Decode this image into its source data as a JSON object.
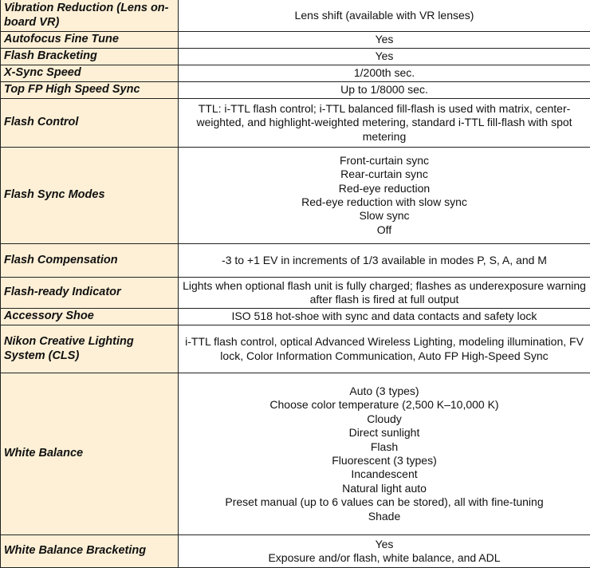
{
  "rows": [
    {
      "label": "Vibration Reduction (Lens on-board VR)",
      "value": "Lens shift (available with VR lenses)"
    },
    {
      "label": "Autofocus Fine Tune",
      "value": "Yes"
    },
    {
      "label": "Flash Bracketing",
      "value": "Yes"
    },
    {
      "label": "X-Sync Speed",
      "value": "1/200th sec."
    },
    {
      "label": "Top FP High Speed Sync",
      "value": "Up to 1/8000 sec."
    },
    {
      "label": "Flash Control",
      "value": "TTL: i-TTL flash control; i-TTL balanced fill-flash is used with matrix, center-weighted, and highlight-weighted metering, standard i-TTL fill-flash with spot metering"
    },
    {
      "label": "Flash Sync Modes",
      "value": "Front-curtain sync\nRear-curtain sync\nRed-eye reduction\nRed-eye reduction with slow sync\nSlow sync\nOff"
    },
    {
      "label": "Flash Compensation",
      "value": "-3 to +1 EV in increments of 1/3 available in modes P, S, A, and M"
    },
    {
      "label": "Flash-ready Indicator",
      "value": "Lights when optional flash unit is fully charged; flashes as underexposure warning after flash is fired at full output"
    },
    {
      "label": "Accessory Shoe",
      "value": "ISO 518 hot-shoe with sync and data contacts and safety lock"
    },
    {
      "label": "Nikon Creative Lighting System (CLS)",
      "value": "i-TTL flash control, optical Advanced Wireless Lighting, modeling illumination, FV lock, Color Information Communication, Auto FP High-Speed Sync"
    },
    {
      "label": "White Balance",
      "value": "Auto (3 types)\nChoose color temperature (2,500 K–10,000 K)\nCloudy\nDirect sunlight\nFlash\nFluorescent (3 types)\nIncandescent\nNatural light auto\nPreset manual (up to 6 values can be stored), all with fine-tuning\nShade"
    },
    {
      "label": "White Balance Bracketing",
      "value": "Yes\nExposure and/or flash, white balance, and ADL"
    }
  ],
  "colors": {
    "label_bg": "#fdf0d6",
    "border": "#222222"
  }
}
